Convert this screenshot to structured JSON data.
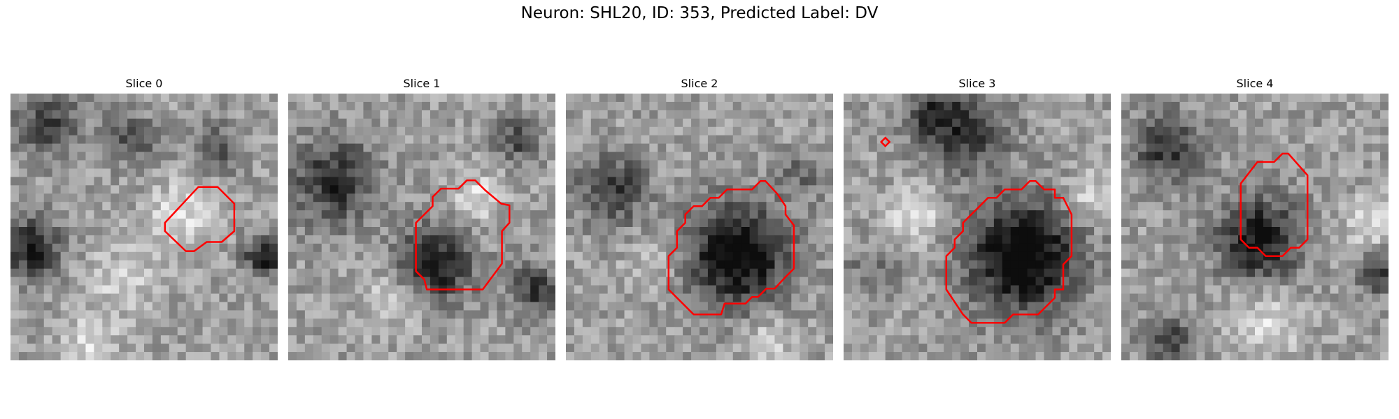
{
  "figure": {
    "title": "Neuron: SHL20, ID: 353, Predicted Label: DV"
  },
  "panels": [
    {
      "title": "Slice 0",
      "colormap": "grayscale",
      "contour_color": "#ff0000"
    },
    {
      "title": "Slice 1",
      "colormap": "grayscale",
      "contour_color": "#ff0000"
    },
    {
      "title": "Slice 2",
      "colormap": "grayscale",
      "contour_color": "#ff0000"
    },
    {
      "title": "Slice 3",
      "colormap": "grayscale",
      "contour_color": "#ff0000"
    },
    {
      "title": "Slice 4",
      "colormap": "grayscale",
      "contour_color": "#ff0000"
    }
  ]
}
